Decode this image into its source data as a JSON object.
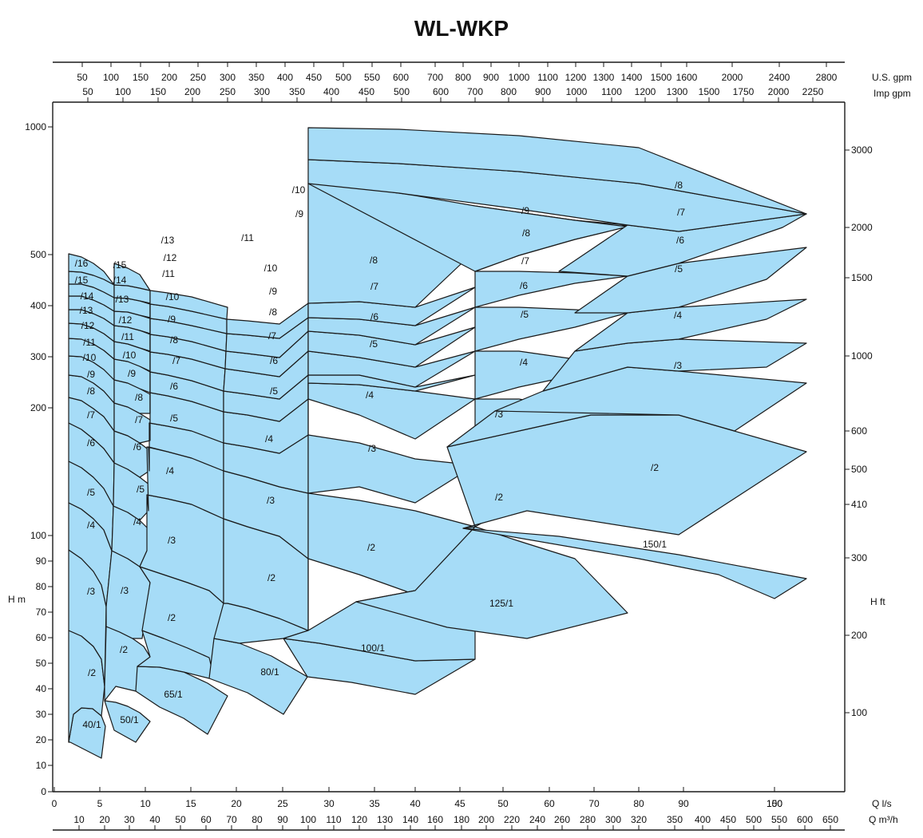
{
  "chart_data": {
    "type": "area",
    "title": "WL-WKP",
    "colors": {
      "fill": "#a6dcf7",
      "stroke": "#1a1a1a"
    },
    "grid": false,
    "x_axis": {
      "label": "Q l/s",
      "range": [
        0,
        180
      ],
      "ticks": [
        "0",
        "5",
        "10",
        "15",
        "20",
        "25",
        "30",
        "35",
        "40",
        "45",
        "50",
        "60",
        "70",
        "80",
        "90",
        "100",
        "150"
      ]
    },
    "x_axis_m3h": {
      "label": "Q m³/h",
      "ticks": [
        "10",
        "20",
        "30",
        "40",
        "50",
        "60",
        "70",
        "80",
        "90",
        "100",
        "110",
        "120",
        "130",
        "140",
        "160",
        "180",
        "200",
        "220",
        "240",
        "260",
        "280",
        "300",
        "320",
        "350",
        "400",
        "450",
        "500",
        "550",
        "600",
        "650"
      ]
    },
    "x_axis_usgpm": {
      "label": "U.S. gpm",
      "ticks": [
        "50",
        "100",
        "150",
        "200",
        "250",
        "300",
        "350",
        "400",
        "450",
        "500",
        "550",
        "600",
        "700",
        "800",
        "900",
        "1000",
        "1100",
        "1200",
        "1300",
        "1400",
        "1500",
        "1600",
        "2000",
        "2400",
        "2800"
      ]
    },
    "x_axis_impgpm": {
      "label": "Imp gpm",
      "ticks": [
        "50",
        "100",
        "150",
        "200",
        "250",
        "300",
        "350",
        "400",
        "450",
        "500",
        "600",
        "700",
        "800",
        "900",
        "1000",
        "1100",
        "1200",
        "1300",
        "1500",
        "1750",
        "2000",
        "2250"
      ]
    },
    "y_axis": {
      "label": "H m",
      "ticks": [
        "0",
        "10",
        "20",
        "30",
        "40",
        "50",
        "60",
        "70",
        "80",
        "90",
        "100",
        "200",
        "300",
        "400",
        "500",
        "1000"
      ]
    },
    "y_axis_ft": {
      "label": "H ft",
      "ticks": [
        "100",
        "200",
        "300",
        "410",
        "500",
        "600",
        "1000",
        "1500",
        "2000",
        "3000"
      ]
    },
    "series": [
      {
        "name": "40/1",
        "labels": [
          "40/1",
          "/2",
          "/3",
          "/4",
          "/5",
          "/6",
          "/7",
          "/8",
          "/9",
          "/10",
          "/11",
          "/12",
          "/13",
          "/14",
          "/15",
          "/16"
        ]
      },
      {
        "name": "50/1",
        "labels": [
          "50/1",
          "/2",
          "/3",
          "/4",
          "/5",
          "/6",
          "/7",
          "/8",
          "/9",
          "/10",
          "/11",
          "/12",
          "/13",
          "/14",
          "/15"
        ]
      },
      {
        "name": "65/1",
        "labels": [
          "65/1",
          "/2",
          "/3",
          "/4",
          "/5",
          "/6",
          "/7",
          "/8",
          "/9",
          "/10",
          "/11",
          "/12",
          "/13"
        ]
      },
      {
        "name": "80/1",
        "labels": [
          "80/1",
          "/2",
          "/3",
          "/4",
          "/5",
          "/6",
          "/7",
          "/8",
          "/9",
          "/10",
          "/11"
        ]
      },
      {
        "name": "100/1",
        "labels": [
          "100/1",
          "/2",
          "/3",
          "/4",
          "/5",
          "/6",
          "/7",
          "/8",
          "/9",
          "/10"
        ]
      },
      {
        "name": "125/1",
        "labels": [
          "125/1",
          "/2",
          "/3",
          "/4",
          "/5",
          "/6",
          "/7",
          "/8",
          "/9"
        ]
      },
      {
        "name": "150/1",
        "labels": [
          "150/1",
          "/2",
          "/3",
          "/4",
          "/5",
          "/6",
          "/7",
          "/8"
        ]
      }
    ]
  }
}
